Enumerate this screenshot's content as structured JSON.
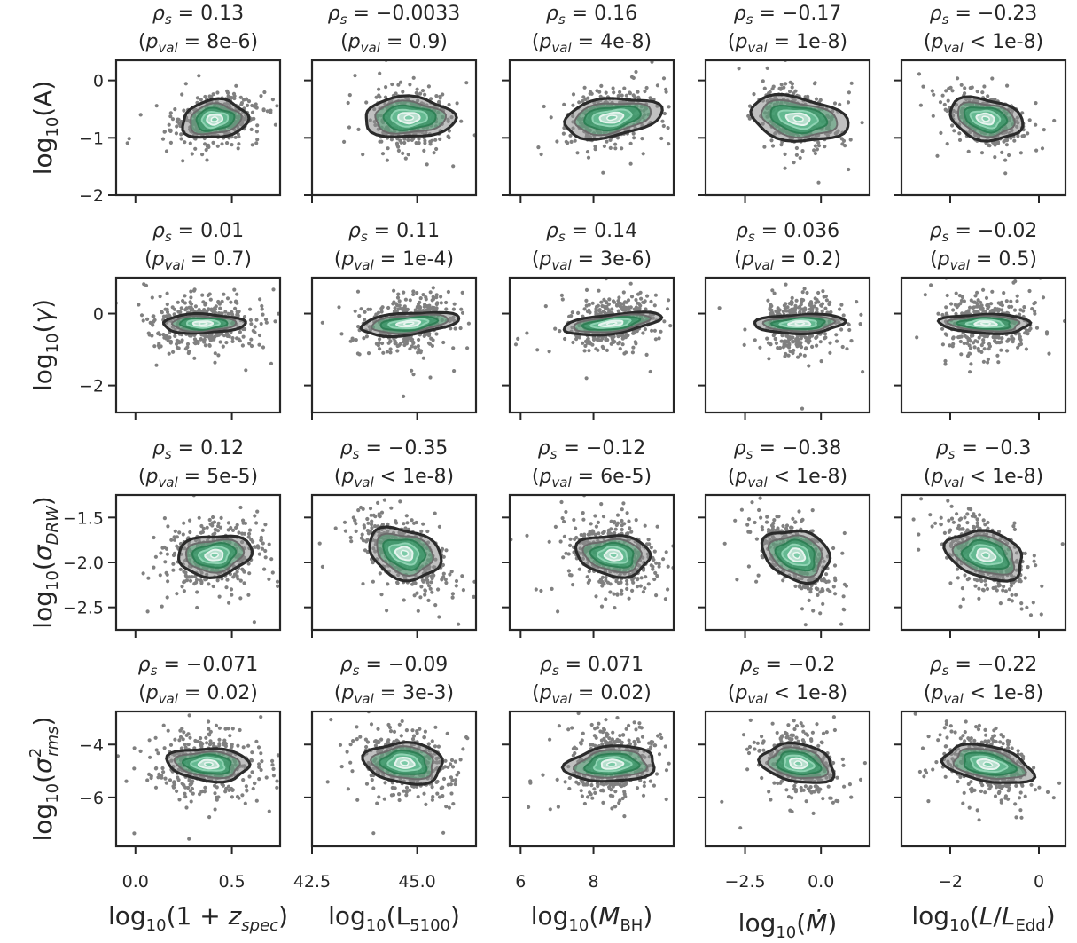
{
  "chart_data": {
    "type": "scatter",
    "layout": "4x5 grid of scatter plots with density contours",
    "grid": false,
    "colors": {
      "points": "#808080",
      "contour_outer": "#2b2b2b",
      "contour_mid": "#3a9a6a",
      "contour_inner": "#bfe3d4",
      "frame": "#262626"
    },
    "columns": [
      {
        "xlabel": "log10(1+zspec)",
        "xticks": [
          0.0,
          0.5
        ],
        "xtick_labels": [
          "0.0",
          "0.5"
        ],
        "xlim": [
          -0.1,
          0.75
        ]
      },
      {
        "xlabel": "log10(L5100)",
        "xticks": [
          42.5,
          45.0
        ],
        "xtick_labels": [
          "42.5",
          "45.0"
        ],
        "xlim": [
          42.5,
          46.4
        ]
      },
      {
        "xlabel": "log10(MBH)",
        "xticks": [
          6,
          8
        ],
        "xtick_labels": [
          "6",
          "8"
        ],
        "xlim": [
          5.7,
          10.2
        ]
      },
      {
        "xlabel": "log10(Ṁ)",
        "xticks": [
          -2.5,
          0.0
        ],
        "xtick_labels": [
          "−2.5",
          "0.0"
        ],
        "xlim": [
          -3.8,
          1.6
        ]
      },
      {
        "xlabel": "log10(L/LEdd)",
        "xticks": [
          -2,
          0
        ],
        "xtick_labels": [
          "−2",
          "0"
        ],
        "xlim": [
          -3.1,
          0.6
        ]
      }
    ],
    "rows": [
      {
        "ylabel": "log10(A)",
        "yticks": [
          0,
          -1,
          -2
        ],
        "ytick_labels": [
          "0",
          "−1",
          "−2"
        ],
        "ylim": [
          -2.0,
          0.35
        ]
      },
      {
        "ylabel": "log10(γ)",
        "yticks": [
          0,
          -2
        ],
        "ytick_labels": [
          "0",
          "−2"
        ],
        "ylim": [
          -2.75,
          1.0
        ]
      },
      {
        "ylabel": "log10(σDRW)",
        "yticks": [
          -1.5,
          -2.0,
          -2.5
        ],
        "ytick_labels": [
          "−1.5",
          "−2.0",
          "−2.5"
        ],
        "ylim": [
          -2.75,
          -1.25
        ]
      },
      {
        "ylabel": "log10(σ²rms)",
        "yticks": [
          -4,
          -6
        ],
        "ytick_labels": [
          "−4",
          "−6"
        ],
        "ylim": [
          -7.85,
          -2.75
        ]
      }
    ],
    "panels": [
      [
        {
          "rho": "0.13",
          "p": "= 8e-6",
          "center": [
            0.41,
            -0.68
          ],
          "spread": [
            0.11,
            0.2
          ],
          "corr": 0.13,
          "contour": [
            0.4,
            0.28
          ]
        },
        {
          "rho": "−0.0033",
          "p": "= 0.9",
          "center": [
            44.8,
            -0.65
          ],
          "spread": [
            0.45,
            0.22
          ],
          "corr": 0.0,
          "contour": [
            0.55,
            0.3
          ]
        },
        {
          "rho": "0.16",
          "p": "= 4e-8",
          "center": [
            8.5,
            -0.65
          ],
          "spread": [
            0.5,
            0.22
          ],
          "corr": 0.16,
          "contour": [
            0.6,
            0.28
          ]
        },
        {
          "rho": "−0.17",
          "p": "= 1e-8",
          "center": [
            -0.75,
            -0.67
          ],
          "spread": [
            0.55,
            0.25
          ],
          "corr": -0.17,
          "contour": [
            0.6,
            0.32
          ]
        },
        {
          "rho": "−0.23",
          "p": "< 1e-8",
          "center": [
            -1.2,
            -0.67
          ],
          "spread": [
            0.4,
            0.22
          ],
          "corr": -0.23,
          "contour": [
            0.45,
            0.3
          ]
        }
      ],
      [
        {
          "rho": "0.01",
          "p": "= 0.7",
          "center": [
            0.35,
            -0.28
          ],
          "spread": [
            0.13,
            0.35
          ],
          "corr": 0.01,
          "contour": [
            0.5,
            0.14
          ]
        },
        {
          "rho": "0.11",
          "p": "= 1e-4",
          "center": [
            44.8,
            -0.28
          ],
          "spread": [
            0.5,
            0.35
          ],
          "corr": 0.11,
          "contour": [
            0.6,
            0.16
          ]
        },
        {
          "rho": "0.14",
          "p": "= 3e-6",
          "center": [
            8.5,
            -0.28
          ],
          "spread": [
            0.55,
            0.35
          ],
          "corr": 0.14,
          "contour": [
            0.6,
            0.14
          ]
        },
        {
          "rho": "0.036",
          "p": "= 0.2",
          "center": [
            -0.7,
            -0.28
          ],
          "spread": [
            0.55,
            0.35
          ],
          "corr": 0.036,
          "contour": [
            0.55,
            0.14
          ]
        },
        {
          "rho": "−0.02",
          "p": "= 0.5",
          "center": [
            -1.2,
            -0.28
          ],
          "spread": [
            0.45,
            0.35
          ],
          "corr": -0.02,
          "contour": [
            0.55,
            0.14
          ]
        }
      ],
      [
        {
          "rho": "0.12",
          "p": "= 5e-5",
          "center": [
            0.41,
            -1.92
          ],
          "spread": [
            0.12,
            0.18
          ],
          "corr": 0.12,
          "contour": [
            0.45,
            0.3
          ]
        },
        {
          "rho": "−0.35",
          "p": "< 1e-8",
          "center": [
            44.7,
            -1.9
          ],
          "spread": [
            0.5,
            0.2
          ],
          "corr": -0.35,
          "contour": [
            0.45,
            0.36
          ]
        },
        {
          "rho": "−0.12",
          "p": "= 6e-5",
          "center": [
            8.55,
            -1.92
          ],
          "spread": [
            0.6,
            0.2
          ],
          "corr": -0.12,
          "contour": [
            0.45,
            0.3
          ]
        },
        {
          "rho": "−0.38",
          "p": "< 1e-8",
          "center": [
            -0.8,
            -1.92
          ],
          "spread": [
            0.6,
            0.2
          ],
          "corr": -0.38,
          "contour": [
            0.42,
            0.36
          ]
        },
        {
          "rho": "−0.3",
          "p": "< 1e-8",
          "center": [
            -1.2,
            -1.92
          ],
          "spread": [
            0.45,
            0.2
          ],
          "corr": -0.3,
          "contour": [
            0.48,
            0.34
          ]
        }
      ],
      [
        {
          "rho": "−0.071",
          "p": "= 0.02",
          "center": [
            0.38,
            -4.75
          ],
          "spread": [
            0.13,
            0.6
          ],
          "corr": -0.071,
          "contour": [
            0.5,
            0.24
          ]
        },
        {
          "rho": "−0.09",
          "p": "= 3e-3",
          "center": [
            44.7,
            -4.7
          ],
          "spread": [
            0.5,
            0.6
          ],
          "corr": -0.09,
          "contour": [
            0.48,
            0.3
          ]
        },
        {
          "rho": "0.071",
          "p": "= 0.02",
          "center": [
            8.5,
            -4.75
          ],
          "spread": [
            0.55,
            0.6
          ],
          "corr": 0.071,
          "contour": [
            0.55,
            0.26
          ]
        },
        {
          "rho": "−0.2",
          "p": "< 1e-8",
          "center": [
            -0.75,
            -4.72
          ],
          "spread": [
            0.6,
            0.6
          ],
          "corr": -0.2,
          "contour": [
            0.45,
            0.28
          ]
        },
        {
          "rho": "−0.22",
          "p": "< 1e-8",
          "center": [
            -1.15,
            -4.75
          ],
          "spread": [
            0.45,
            0.6
          ],
          "corr": -0.22,
          "contour": [
            0.55,
            0.26
          ]
        }
      ]
    ]
  }
}
